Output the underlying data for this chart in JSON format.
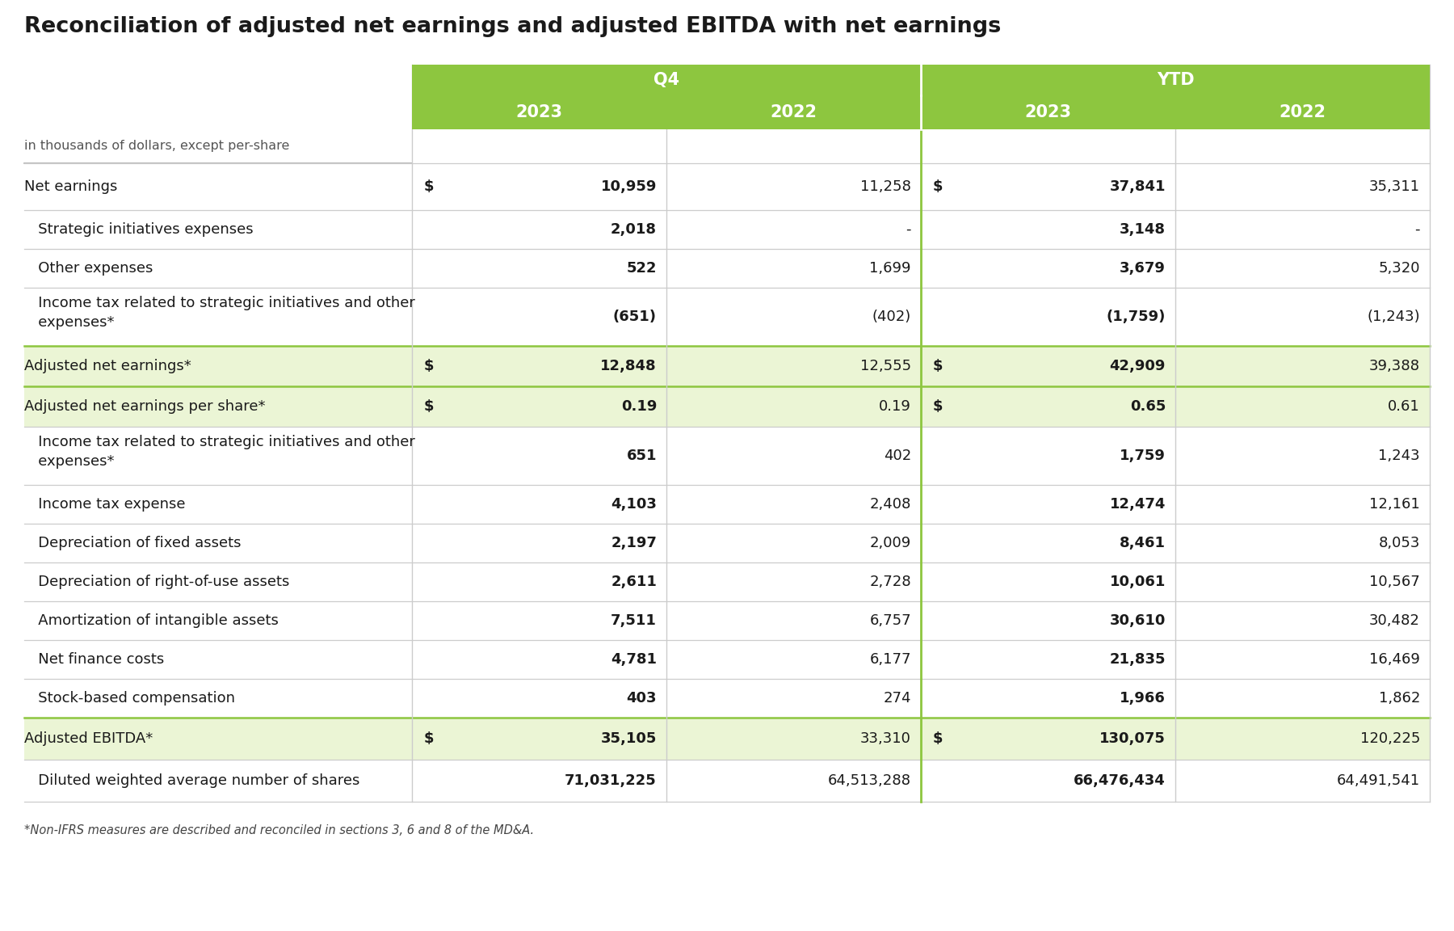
{
  "title": "Reconciliation of adjusted net earnings and adjusted EBITDA with net earnings",
  "subtitle": "in thousands of dollars, except per-share",
  "q4_label": "Q4",
  "ytd_label": "YTD",
  "col_headers": [
    "2023",
    "2022",
    "2023",
    "2022"
  ],
  "header_bg": "#8DC63F",
  "header_text_color": "#FFFFFF",
  "light_green_bg": "#EBF5D5",
  "white_bg": "#FFFFFF",
  "border_color": "#CCCCCC",
  "green_border": "#8DC63F",
  "text_color": "#1a1a1a",
  "subtitle_color": "#555555",
  "footnote": "*Non-IFRS measures are described and reconciled in sections 3, 6 and 8 of the MD&A.",
  "rows": [
    {
      "label": "Net earnings",
      "indent": 0,
      "dollar_sign": true,
      "values": [
        "10,959",
        "11,258",
        "37,841",
        "35,311"
      ],
      "bold_values": [
        true,
        false,
        true,
        false
      ],
      "bg": "white",
      "multiline": false
    },
    {
      "label": "   Strategic initiatives expenses",
      "indent": 0,
      "dollar_sign": false,
      "values": [
        "2,018",
        "-",
        "3,148",
        "-"
      ],
      "bold_values": [
        true,
        false,
        true,
        false
      ],
      "bg": "white",
      "multiline": false
    },
    {
      "label": "   Other expenses",
      "indent": 0,
      "dollar_sign": false,
      "values": [
        "522",
        "1,699",
        "3,679",
        "5,320"
      ],
      "bold_values": [
        true,
        false,
        true,
        false
      ],
      "bg": "white",
      "multiline": false
    },
    {
      "label": "   Income tax related to strategic initiatives and other\n   expenses*",
      "indent": 0,
      "dollar_sign": false,
      "values": [
        "(651)",
        "(402)",
        "(1,759)",
        "(1,243)"
      ],
      "bold_values": [
        true,
        false,
        true,
        false
      ],
      "bg": "white",
      "multiline": true
    },
    {
      "label": "Adjusted net earnings*",
      "indent": 0,
      "dollar_sign": true,
      "values": [
        "12,848",
        "12,555",
        "42,909",
        "39,388"
      ],
      "bold_values": [
        true,
        false,
        true,
        false
      ],
      "bg": "light_green",
      "multiline": false
    },
    {
      "label": "Adjusted net earnings per share*",
      "indent": 0,
      "dollar_sign": true,
      "values": [
        "0.19",
        "0.19",
        "0.65",
        "0.61"
      ],
      "bold_values": [
        true,
        false,
        true,
        false
      ],
      "bg": "light_green",
      "multiline": false
    },
    {
      "label": "   Income tax related to strategic initiatives and other\n   expenses*",
      "indent": 0,
      "dollar_sign": false,
      "values": [
        "651",
        "402",
        "1,759",
        "1,243"
      ],
      "bold_values": [
        true,
        false,
        true,
        false
      ],
      "bg": "white",
      "multiline": true
    },
    {
      "label": "   Income tax expense",
      "indent": 0,
      "dollar_sign": false,
      "values": [
        "4,103",
        "2,408",
        "12,474",
        "12,161"
      ],
      "bold_values": [
        true,
        false,
        true,
        false
      ],
      "bg": "white",
      "multiline": false
    },
    {
      "label": "   Depreciation of fixed assets",
      "indent": 0,
      "dollar_sign": false,
      "values": [
        "2,197",
        "2,009",
        "8,461",
        "8,053"
      ],
      "bold_values": [
        true,
        false,
        true,
        false
      ],
      "bg": "white",
      "multiline": false
    },
    {
      "label": "   Depreciation of right-of-use assets",
      "indent": 0,
      "dollar_sign": false,
      "values": [
        "2,611",
        "2,728",
        "10,061",
        "10,567"
      ],
      "bold_values": [
        true,
        false,
        true,
        false
      ],
      "bg": "white",
      "multiline": false
    },
    {
      "label": "   Amortization of intangible assets",
      "indent": 0,
      "dollar_sign": false,
      "values": [
        "7,511",
        "6,757",
        "30,610",
        "30,482"
      ],
      "bold_values": [
        true,
        false,
        true,
        false
      ],
      "bg": "white",
      "multiline": false
    },
    {
      "label": "   Net finance costs",
      "indent": 0,
      "dollar_sign": false,
      "values": [
        "4,781",
        "6,177",
        "21,835",
        "16,469"
      ],
      "bold_values": [
        true,
        false,
        true,
        false
      ],
      "bg": "white",
      "multiline": false
    },
    {
      "label": "   Stock-based compensation",
      "indent": 0,
      "dollar_sign": false,
      "values": [
        "403",
        "274",
        "1,966",
        "1,862"
      ],
      "bold_values": [
        true,
        false,
        true,
        false
      ],
      "bg": "white",
      "multiline": false
    },
    {
      "label": "Adjusted EBITDA*",
      "indent": 0,
      "dollar_sign": true,
      "values": [
        "35,105",
        "33,310",
        "130,075",
        "120,225"
      ],
      "bold_values": [
        true,
        false,
        true,
        false
      ],
      "bg": "light_green",
      "multiline": false
    },
    {
      "label": "   Diluted weighted average number of shares",
      "indent": 0,
      "dollar_sign": false,
      "values": [
        "71,031,225",
        "64,513,288",
        "66,476,434",
        "64,491,541"
      ],
      "bold_values": [
        true,
        false,
        true,
        false
      ],
      "bg": "white",
      "multiline": false
    }
  ]
}
